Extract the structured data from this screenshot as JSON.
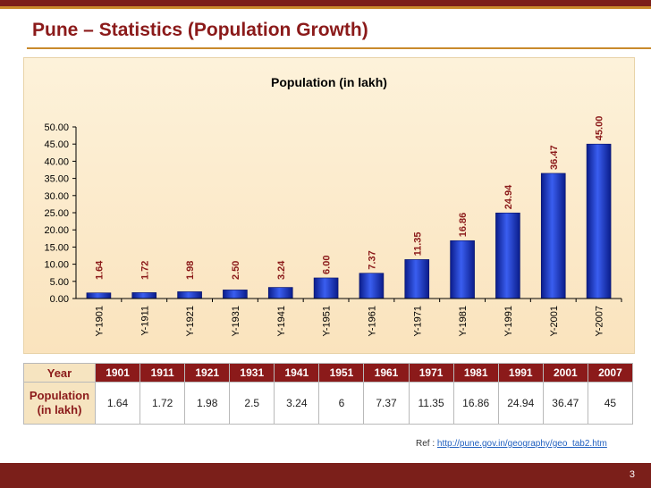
{
  "slide": {
    "title": "Pune – Statistics (Population Growth)",
    "page_number": "3"
  },
  "reference": {
    "prefix": "Ref : ",
    "link_text": "http://pune.gov.in/geography/geo_tab2.htm"
  },
  "colors": {
    "title": "#8b1a1a",
    "bar": "#1f3fd1",
    "bar_dark": "#0a1c8a",
    "data_label": "#8b1a1a",
    "table_header": "#8b1a1a",
    "footer": "#7b1f1a"
  },
  "chart_data": {
    "type": "bar",
    "title": "Population (in lakh)",
    "categories": [
      "Y-1901",
      "Y-1911",
      "Y-1921",
      "Y-1931",
      "Y-1941",
      "Y-1951",
      "Y-1961",
      "Y-1971",
      "Y-1981",
      "Y-1991",
      "Y-2001",
      "Y-2007"
    ],
    "values": [
      1.64,
      1.72,
      1.98,
      2.5,
      3.24,
      6.0,
      7.37,
      11.35,
      16.86,
      24.94,
      36.47,
      45.0
    ],
    "data_labels": [
      "1.64",
      "1.72",
      "1.98",
      "2.50",
      "3.24",
      "6.00",
      "7.37",
      "11.35",
      "16.86",
      "24.94",
      "36.47",
      "45.00"
    ],
    "ylim": [
      0,
      50
    ],
    "yticks": [
      "0.00",
      "5.00",
      "10.00",
      "15.00",
      "20.00",
      "25.00",
      "30.00",
      "35.00",
      "40.00",
      "45.00",
      "50.00"
    ],
    "grid": false,
    "legend": "none"
  },
  "table": {
    "row_headers": [
      "Year",
      "Population (in lakh)"
    ],
    "years": [
      "1901",
      "1911",
      "1921",
      "1931",
      "1941",
      "1951",
      "1961",
      "1971",
      "1981",
      "1991",
      "2001",
      "2007"
    ],
    "population": [
      "1.64",
      "1.72",
      "1.98",
      "2.5",
      "3.24",
      "6",
      "7.37",
      "11.35",
      "16.86",
      "24.94",
      "36.47",
      "45"
    ]
  }
}
